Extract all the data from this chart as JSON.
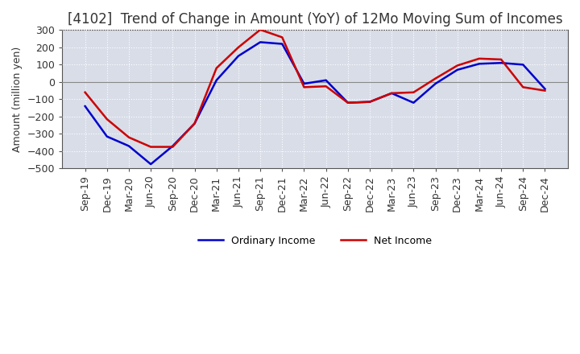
{
  "title": "[4102]  Trend of Change in Amount (YoY) of 12Mo Moving Sum of Incomes",
  "ylabel": "Amount (million yen)",
  "x_labels": [
    "Sep-19",
    "Dec-19",
    "Mar-20",
    "Jun-20",
    "Sep-20",
    "Dec-20",
    "Mar-21",
    "Jun-21",
    "Sep-21",
    "Dec-21",
    "Mar-22",
    "Jun-22",
    "Sep-22",
    "Dec-22",
    "Mar-23",
    "Jun-23",
    "Sep-23",
    "Dec-23",
    "Mar-24",
    "Jun-24",
    "Sep-24",
    "Dec-24"
  ],
  "ordinary_income": [
    -140,
    -315,
    -370,
    -475,
    -370,
    -240,
    10,
    150,
    230,
    220,
    -10,
    10,
    -120,
    -115,
    -65,
    -120,
    -10,
    70,
    105,
    110,
    100,
    -40
  ],
  "net_income": [
    -60,
    -215,
    -320,
    -375,
    -375,
    -240,
    80,
    200,
    302,
    258,
    -30,
    -25,
    -120,
    -115,
    -65,
    -60,
    20,
    95,
    135,
    130,
    -30,
    -50
  ],
  "ordinary_color": "#0000cc",
  "net_color": "#cc0000",
  "ylim": [
    -500,
    300
  ],
  "yticks": [
    -500,
    -400,
    -300,
    -200,
    -100,
    0,
    100,
    200,
    300
  ],
  "background_color": "#ffffff",
  "plot_bg_color": "#d8dde8",
  "grid_color": "#ffffff",
  "zero_line_color": "#888888",
  "legend_ordinary": "Ordinary Income",
  "legend_net": "Net Income",
  "title_fontsize": 12,
  "title_color": "#333333",
  "axis_label_fontsize": 9,
  "tick_fontsize": 9,
  "line_width": 1.8
}
